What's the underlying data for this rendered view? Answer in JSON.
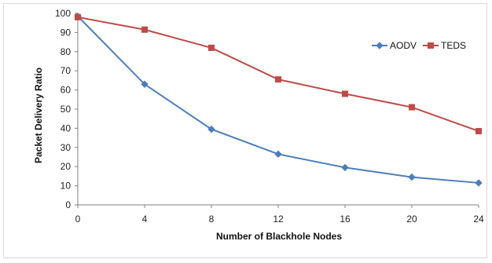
{
  "chart_data": {
    "type": "line",
    "title": "",
    "xlabel": "Number of Blackhole Nodes",
    "ylabel": "Packet Delivery Ratio",
    "x": [
      0,
      4,
      8,
      12,
      16,
      20,
      24
    ],
    "xlim": [
      0,
      24
    ],
    "ylim": [
      0,
      100
    ],
    "yticks": [
      0,
      10,
      20,
      30,
      40,
      50,
      60,
      70,
      80,
      90,
      100
    ],
    "grid": false,
    "legend_position": "right",
    "series": [
      {
        "name": "AODV",
        "values": [
          98.5,
          63,
          39.5,
          26.5,
          19.5,
          14.5,
          11.5
        ],
        "color": "#4a7ebb",
        "marker": "diamond"
      },
      {
        "name": "TEDS",
        "values": [
          98,
          91.5,
          82,
          65.5,
          58,
          51,
          38.5
        ],
        "color": "#be4b48",
        "marker": "square"
      }
    ]
  }
}
